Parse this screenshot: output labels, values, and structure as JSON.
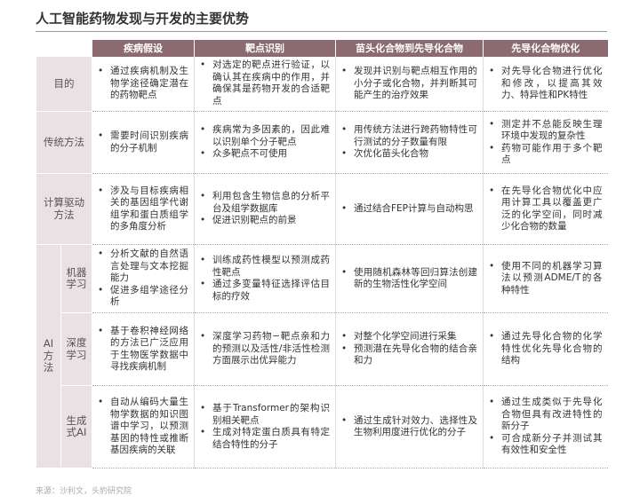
{
  "title": "人工智能药物发现与开发的主要优势",
  "table": {
    "header": [
      "疾病假设",
      "靶点识别",
      "苗头化合物到先导化合物",
      "先导化合物优化"
    ],
    "rows": [
      {
        "label": "目的",
        "cells": [
          [
            "通过疾病机制及生物学途径确定潜在的药物靶点"
          ],
          [
            "对选定的靶点进行验证，以确认其在疾病中的作用，并确保其是药物开发的合适靶点"
          ],
          [
            "发现并识别与靶点相互作用的小分子或化合物，并判断其可能产生的治疗效果"
          ],
          [
            "对先导化合物进行优化和修改，以提高其效力、特异性和PK特性"
          ]
        ]
      },
      {
        "label": "传统方法",
        "cells": [
          [
            "需要时间识别疾病的分子机制"
          ],
          [
            "疾病常为多因素的，因此难以识别单个分子靶点",
            "众多靶点不可使用"
          ],
          [
            "用传统方法进行跨药物特性可行测试的分子数量有限",
            "次优化苗头化合物"
          ],
          [
            "测定并不总能反映生理环境中发现的复杂性",
            "药物可能作用于多个靶点"
          ]
        ]
      },
      {
        "label": "计算驱动方法",
        "cells": [
          [
            "涉及与目标疾病相关的基因组学代谢组学和蛋白质组学的多角度分析"
          ],
          [
            "利用包含生物信息的分析平台及组学数据库",
            "促进识别靶点的前景"
          ],
          [
            "通过结合FEP计算与自动构思"
          ],
          [
            "在先导化合物优化中应用计算工具以覆盖更广泛的化学空间，同时减少化合物的数量"
          ]
        ]
      }
    ],
    "ai": {
      "label": "AI方法",
      "rows": [
        {
          "label": "机器学习",
          "cells": [
            [
              "分析文献的自然语言处理与文本挖掘能力",
              "促进多组学途径分析"
            ],
            [
              "训练成药性模型以预测成药性靶点",
              "通过多变量特征选择评估目标的疗效"
            ],
            [
              "使用随机森林等回归算法创建新的生物活性化学空间"
            ],
            [
              "使用不同的机器学习算法以预测ADME/T的各种特性"
            ]
          ]
        },
        {
          "label": "深度学习",
          "cells": [
            [
              "基于卷积神经网络的方法已广泛应用于生物医学数据中寻找疾病机制"
            ],
            [
              "深度学习药物−靶点亲和力的预测以及活性/非活性检测方面展示出优异能力"
            ],
            [
              "对整个化学空间进行采集",
              "预测潜在先导化合物的结合亲和力"
            ],
            [
              "通过先导化合物的化学特性优化先导化合物的结构"
            ]
          ]
        },
        {
          "label": "生成式AI",
          "cells": [
            [
              "自动从编码大量生物学数据的知识图谱中学习，以预测基因的特性或推断基因疾病的关联"
            ],
            [
              "基于Transformer的架构识别相关靶点",
              "生成对特定蛋白质具有特定结合特性的分子"
            ],
            [
              "通过生成针对效力、选择性及生物利用度进行优化的分子"
            ],
            [
              "通过生成类似于先导化合物但具有改进特性的新分子",
              "可合成新分子并测试其有效性和安全性"
            ]
          ]
        }
      ]
    }
  },
  "source": "来源：沙利文，头豹研究院"
}
